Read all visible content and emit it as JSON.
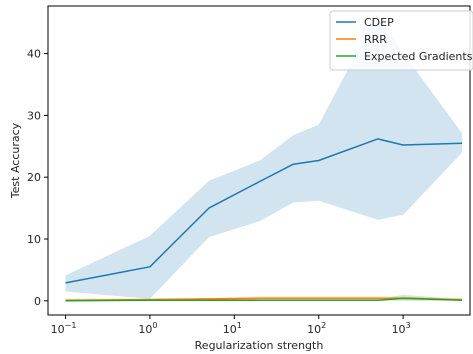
{
  "chart_data": {
    "type": "line",
    "xlabel": "Regularization strength",
    "ylabel": "Test Accuracy",
    "xscale": "log",
    "xlim": [
      0.062,
      6200
    ],
    "ylim": [
      -2.3,
      47.7
    ],
    "xticks": [
      {
        "value": 0.1,
        "base": "10",
        "exp": "−1"
      },
      {
        "value": 1,
        "base": "10",
        "exp": "0"
      },
      {
        "value": 10,
        "base": "10",
        "exp": "1"
      },
      {
        "value": 100,
        "base": "10",
        "exp": "2"
      },
      {
        "value": 1000,
        "base": "10",
        "exp": "3"
      }
    ],
    "yticks": [
      {
        "value": 0,
        "label": "0"
      },
      {
        "value": 10,
        "label": "10"
      },
      {
        "value": 20,
        "label": "20"
      },
      {
        "value": 30,
        "label": "30"
      },
      {
        "value": 40,
        "label": "40"
      }
    ],
    "legend_position": "top-right",
    "grid": false,
    "series": [
      {
        "name": "CDEP",
        "color": "#1f77b4",
        "x": [
          0.1,
          1,
          5,
          20,
          50,
          100,
          500,
          1000,
          5000
        ],
        "y": [
          2.9,
          5.5,
          15.0,
          19.3,
          22.1,
          22.7,
          26.2,
          25.2,
          25.5
        ],
        "lower": [
          1.5,
          0.3,
          10.3,
          12.9,
          15.9,
          16.2,
          13.1,
          13.9,
          24.0
        ],
        "upper": [
          4.1,
          10.5,
          19.4,
          22.7,
          26.8,
          28.5,
          46.5,
          40.1,
          27.1
        ]
      },
      {
        "name": "RRR",
        "color": "#ff7f0e",
        "x": [
          0.1,
          1,
          5,
          20,
          50,
          100,
          500,
          1000,
          5000
        ],
        "y": [
          0.1,
          0.2,
          0.3,
          0.4,
          0.4,
          0.4,
          0.4,
          0.4,
          0.2
        ],
        "lower": [
          0.0,
          0.0,
          0.1,
          0.1,
          0.1,
          0.1,
          0.1,
          0.1,
          0.0
        ],
        "upper": [
          0.3,
          0.4,
          0.5,
          0.7,
          0.7,
          0.7,
          0.7,
          0.7,
          0.4
        ]
      },
      {
        "name": "Expected Gradients",
        "color": "#2ca02c",
        "x": [
          0.1,
          1,
          5,
          20,
          50,
          100,
          500,
          1000,
          5000
        ],
        "y": [
          0.0,
          0.1,
          0.1,
          0.1,
          0.1,
          0.1,
          0.1,
          0.4,
          0.1
        ],
        "lower": [
          0.0,
          0.0,
          0.0,
          0.0,
          0.0,
          0.0,
          0.0,
          0.0,
          0.0
        ],
        "upper": [
          0.1,
          0.2,
          0.2,
          0.2,
          0.2,
          0.2,
          0.2,
          1.0,
          0.2
        ]
      }
    ]
  }
}
